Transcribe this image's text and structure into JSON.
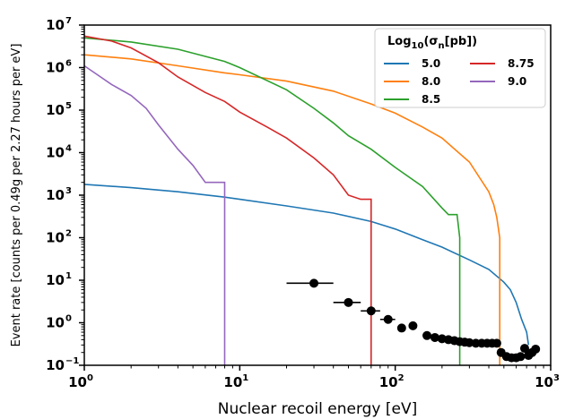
{
  "chart_data": {
    "type": "line",
    "xlabel": "Nuclear recoil energy [eV]",
    "ylabel": "Event rate [counts per 0.49g per 2.27 hours per eV]",
    "x_scale": "log",
    "y_scale": "log",
    "xlim": [
      1,
      1000
    ],
    "ylim": [
      0.1,
      10000000
    ],
    "x_ticks": [
      {
        "value": 1,
        "base": "10",
        "exp": "0"
      },
      {
        "value": 10,
        "base": "10",
        "exp": "1"
      },
      {
        "value": 100,
        "base": "10",
        "exp": "2"
      },
      {
        "value": 1000,
        "base": "10",
        "exp": "3"
      }
    ],
    "y_ticks": [
      {
        "value": 0.1,
        "label": "10",
        "exp": "−1"
      },
      {
        "value": 1,
        "label": "10",
        "exp": "0"
      },
      {
        "value": 10,
        "label": "10",
        "exp": "1"
      },
      {
        "value": 100,
        "label": "10",
        "exp": "2"
      },
      {
        "value": 1000,
        "label": "10",
        "exp": "3"
      },
      {
        "value": 10000,
        "label": "10",
        "exp": "4"
      },
      {
        "value": 100000,
        "label": "10",
        "exp": "5"
      },
      {
        "value": 1000000,
        "label": "10",
        "exp": "6"
      },
      {
        "value": 10000000,
        "label": "10",
        "exp": "7"
      }
    ],
    "grid": false,
    "legend": {
      "title_prefix": "Log",
      "title_sub": "10",
      "title_suffix": "(σ",
      "title_sub2": "n",
      "title_end": "[pb])",
      "placement": "top-right",
      "columns": 2
    },
    "series": [
      {
        "name": "5.0",
        "color": "#1f77b4",
        "x": [
          1,
          2,
          4,
          8,
          10,
          20,
          40,
          70,
          100,
          150,
          200,
          300,
          400,
          500,
          550,
          600,
          650,
          700,
          720
        ],
        "y": [
          1800,
          1500,
          1200,
          900,
          800,
          560,
          380,
          240,
          160,
          90,
          60,
          30,
          18,
          9,
          6,
          3,
          1.2,
          0.6,
          0.3
        ]
      },
      {
        "name": "8.0",
        "color": "#ff7f0e",
        "x": [
          1,
          2,
          4,
          8,
          10,
          20,
          40,
          70,
          100,
          150,
          200,
          300,
          400,
          430,
          450,
          470,
          470
        ],
        "y": [
          2000000,
          1600000,
          1100000,
          750000,
          680000,
          480000,
          280000,
          140000,
          85000,
          40000,
          22000,
          6000,
          1200,
          600,
          300,
          100,
          0.1
        ]
      },
      {
        "name": "8.5",
        "color": "#2ca02c",
        "x": [
          1,
          2,
          4,
          8,
          10,
          20,
          30,
          40,
          50,
          70,
          100,
          150,
          200,
          220,
          250,
          260,
          260
        ],
        "y": [
          5000000,
          4000000,
          2700000,
          1400000,
          1000000,
          300000,
          110000,
          50000,
          25000,
          12000,
          4500,
          1600,
          500,
          350,
          350,
          100,
          0.1
        ]
      },
      {
        "name": "8.75",
        "color": "#d62728",
        "x": [
          1,
          1.5,
          2,
          3,
          4,
          6,
          8,
          10,
          15,
          20,
          30,
          40,
          50,
          60,
          70,
          70
        ],
        "y": [
          5500000,
          4200000,
          2900000,
          1300000,
          600000,
          260000,
          160000,
          90000,
          40000,
          22000,
          7500,
          3000,
          1000,
          800,
          800,
          0.1
        ]
      },
      {
        "name": "9.0",
        "color": "#9467bd",
        "x": [
          1,
          1.2,
          1.5,
          2,
          2.5,
          3,
          4,
          5,
          6,
          8,
          8
        ],
        "y": [
          1100000,
          700000,
          400000,
          220000,
          110000,
          45000,
          12000,
          5000,
          2000,
          2000,
          0.1
        ]
      }
    ],
    "measurement": {
      "color": "#000000",
      "points": [
        {
          "x": 30,
          "y": 8.5,
          "xerr": [
            20,
            40
          ]
        },
        {
          "x": 50,
          "y": 3.0,
          "xerr": [
            40,
            60
          ]
        },
        {
          "x": 70,
          "y": 1.9,
          "xerr": [
            60,
            80
          ]
        },
        {
          "x": 90,
          "y": 1.2,
          "xerr": [
            80,
            100
          ]
        },
        {
          "x": 110,
          "y": 0.75
        },
        {
          "x": 130,
          "y": 0.85
        },
        {
          "x": 160,
          "y": 0.5
        },
        {
          "x": 180,
          "y": 0.45
        },
        {
          "x": 200,
          "y": 0.42
        },
        {
          "x": 220,
          "y": 0.4
        },
        {
          "x": 240,
          "y": 0.38
        },
        {
          "x": 260,
          "y": 0.36
        },
        {
          "x": 280,
          "y": 0.35
        },
        {
          "x": 300,
          "y": 0.34
        },
        {
          "x": 330,
          "y": 0.33
        },
        {
          "x": 360,
          "y": 0.33
        },
        {
          "x": 390,
          "y": 0.33
        },
        {
          "x": 420,
          "y": 0.33
        },
        {
          "x": 450,
          "y": 0.33
        },
        {
          "x": 480,
          "y": 0.2
        },
        {
          "x": 520,
          "y": 0.16
        },
        {
          "x": 560,
          "y": 0.15
        },
        {
          "x": 600,
          "y": 0.15
        },
        {
          "x": 640,
          "y": 0.16
        },
        {
          "x": 680,
          "y": 0.25
        },
        {
          "x": 720,
          "y": 0.17
        },
        {
          "x": 760,
          "y": 0.2
        },
        {
          "x": 800,
          "y": 0.24
        }
      ]
    }
  }
}
